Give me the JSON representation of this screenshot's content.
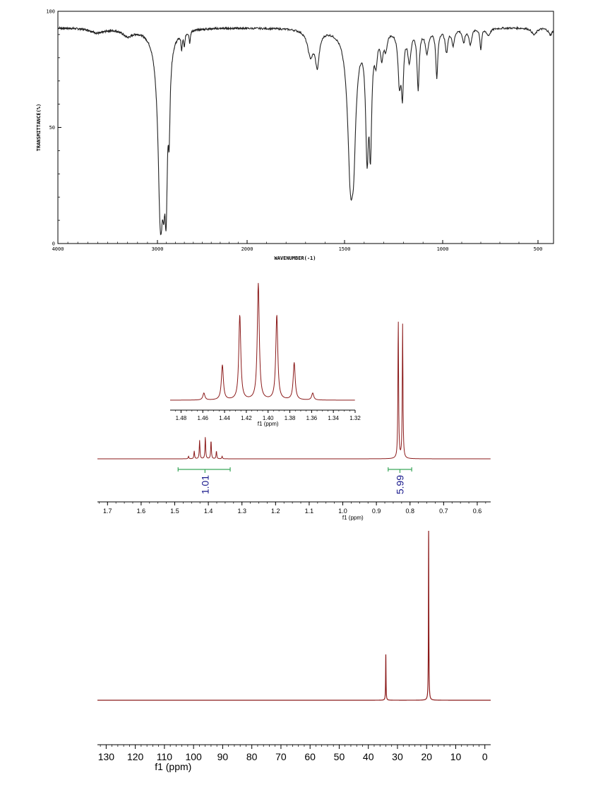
{
  "chart_data": [
    {
      "type": "line",
      "xlabel": "WAVENUMBER(-1)",
      "ylabel": "TRANSMITTANCE(%)",
      "xlim": [
        4000,
        400
      ],
      "ylim": [
        0,
        100
      ],
      "x_ticks": [
        4000,
        3000,
        2000,
        1500,
        1000,
        500
      ],
      "x_tick_labels": [
        "4000",
        "3000",
        "2000",
        "1500",
        "1000",
        "500"
      ],
      "y_ticks": [
        0,
        50,
        100
      ],
      "y_tick_labels": [
        "0",
        "50",
        "100"
      ],
      "baseline": 93,
      "bands": [
        {
          "x": 2962,
          "min": 5,
          "w": 18
        },
        {
          "x": 2930,
          "min": 22,
          "w": 12
        },
        {
          "x": 2905,
          "min": 10,
          "w": 10
        },
        {
          "x": 2870,
          "min": 55,
          "w": 10
        },
        {
          "x": 2730,
          "min": 86,
          "w": 8
        },
        {
          "x": 2700,
          "min": 87,
          "w": 8
        },
        {
          "x": 2640,
          "min": 88,
          "w": 8
        },
        {
          "x": 3300,
          "min": 90,
          "w": 60
        },
        {
          "x": 3600,
          "min": 91,
          "w": 80
        },
        {
          "x": 1675,
          "min": 82,
          "w": 18
        },
        {
          "x": 1640,
          "min": 78,
          "w": 12
        },
        {
          "x": 1468,
          "min": 26,
          "w": 13
        },
        {
          "x": 1455,
          "min": 45,
          "w": 10
        },
        {
          "x": 1385,
          "min": 37,
          "w": 7
        },
        {
          "x": 1368,
          "min": 40,
          "w": 6
        },
        {
          "x": 1340,
          "min": 82,
          "w": 8
        },
        {
          "x": 1310,
          "min": 82,
          "w": 8
        },
        {
          "x": 1290,
          "min": 86,
          "w": 8
        },
        {
          "x": 1220,
          "min": 70,
          "w": 8
        },
        {
          "x": 1205,
          "min": 66,
          "w": 6
        },
        {
          "x": 1170,
          "min": 80,
          "w": 10
        },
        {
          "x": 1125,
          "min": 67,
          "w": 6
        },
        {
          "x": 1080,
          "min": 83,
          "w": 10
        },
        {
          "x": 1030,
          "min": 72,
          "w": 6
        },
        {
          "x": 980,
          "min": 83,
          "w": 8
        },
        {
          "x": 945,
          "min": 86,
          "w": 8
        },
        {
          "x": 890,
          "min": 87,
          "w": 8
        },
        {
          "x": 855,
          "min": 86,
          "w": 8
        },
        {
          "x": 800,
          "min": 84,
          "w": 5
        },
        {
          "x": 760,
          "min": 90,
          "w": 12
        },
        {
          "x": 520,
          "min": 90,
          "w": 15
        },
        {
          "x": 420,
          "min": 90,
          "w": 15
        }
      ]
    },
    {
      "type": "line",
      "xlabel": "f1 (ppm)",
      "xlim": [
        1.73,
        0.56
      ],
      "x_ticks": [
        1.7,
        1.6,
        1.5,
        1.4,
        1.3,
        1.2,
        1.1,
        1.0,
        0.9,
        0.8,
        0.7,
        0.6
      ],
      "x_tick_labels": [
        "1.7",
        "1.6",
        "1.5",
        "1.4",
        "1.3",
        "1.2",
        "1.1",
        "1.0",
        "0.9",
        "0.8",
        "0.7",
        "0.6"
      ],
      "peaks": [
        {
          "ppm": 1.459,
          "h": 0.018
        },
        {
          "ppm": 1.442,
          "h": 0.055
        },
        {
          "ppm": 1.426,
          "h": 0.13
        },
        {
          "ppm": 1.409,
          "h": 0.155
        },
        {
          "ppm": 1.392,
          "h": 0.13
        },
        {
          "ppm": 1.376,
          "h": 0.055
        },
        {
          "ppm": 1.359,
          "h": 0.018
        },
        {
          "ppm": 0.835,
          "h": 0.98
        },
        {
          "ppm": 0.822,
          "h": 0.94
        }
      ],
      "integrals": [
        {
          "from": 1.49,
          "to": 1.335,
          "center": 1.41,
          "value": "1.01"
        },
        {
          "from": 0.865,
          "to": 0.795,
          "center": 0.83,
          "value": "5.99"
        }
      ],
      "inset": {
        "xlabel": "f1 (ppm)",
        "xlim": [
          1.49,
          1.32
        ],
        "x_ticks": [
          1.48,
          1.46,
          1.44,
          1.42,
          1.4,
          1.38,
          1.36,
          1.34,
          1.32
        ],
        "x_tick_labels": [
          "1.48",
          "1.46",
          "1.44",
          "1.42",
          "1.40",
          "1.38",
          "1.36",
          "1.34",
          "1.32"
        ],
        "peaks": [
          {
            "ppm": 1.459,
            "h": 0.06
          },
          {
            "ppm": 1.442,
            "h": 0.3
          },
          {
            "ppm": 1.426,
            "h": 0.73
          },
          {
            "ppm": 1.409,
            "h": 1.0
          },
          {
            "ppm": 1.392,
            "h": 0.73
          },
          {
            "ppm": 1.376,
            "h": 0.32
          },
          {
            "ppm": 1.359,
            "h": 0.06
          }
        ]
      }
    },
    {
      "type": "line",
      "xlabel": "f1 (ppm)",
      "xlim": [
        133,
        -2
      ],
      "x_ticks": [
        130,
        120,
        110,
        100,
        90,
        80,
        70,
        60,
        50,
        40,
        30,
        20,
        10,
        0
      ],
      "x_tick_labels": [
        "130",
        "120",
        "110",
        "100",
        "90",
        "80",
        "70",
        "60",
        "50",
        "40",
        "30",
        "20",
        "10",
        "0"
      ],
      "peaks": [
        {
          "ppm": 34.0,
          "h": 0.27
        },
        {
          "ppm": 19.3,
          "h": 1.0
        }
      ]
    }
  ]
}
